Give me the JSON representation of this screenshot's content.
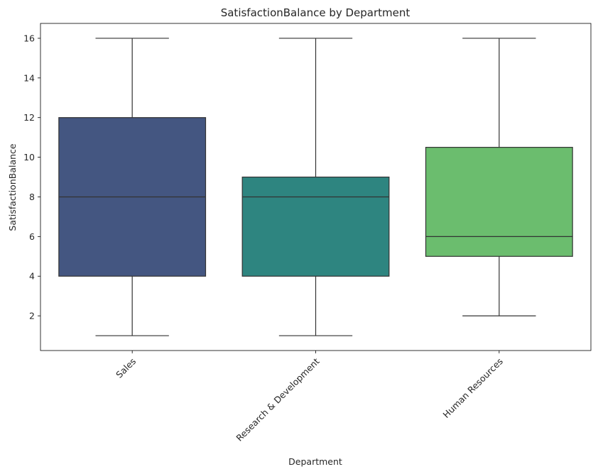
{
  "chart_data": {
    "type": "box",
    "title": "SatisfactionBalance by Department",
    "xlabel": "Department",
    "ylabel": "SatisfactionBalance",
    "ylim": [
      0.25,
      16.75
    ],
    "yticks": [
      2,
      4,
      6,
      8,
      10,
      12,
      14,
      16
    ],
    "grid": false,
    "categories": [
      "Sales",
      "Research & Development",
      "Human Resources"
    ],
    "boxes": [
      {
        "category": "Sales",
        "whisker_low": 1,
        "q1": 4,
        "median": 8,
        "q3": 12,
        "whisker_high": 16,
        "color": "#445681"
      },
      {
        "category": "Research & Development",
        "whisker_low": 1,
        "q1": 4,
        "median": 8,
        "q3": 9,
        "whisker_high": 16,
        "color": "#2e8580"
      },
      {
        "category": "Human Resources",
        "whisker_low": 2,
        "q1": 5,
        "median": 6,
        "q3": 10.5,
        "whisker_high": 16,
        "color": "#6bbd6e"
      }
    ]
  }
}
